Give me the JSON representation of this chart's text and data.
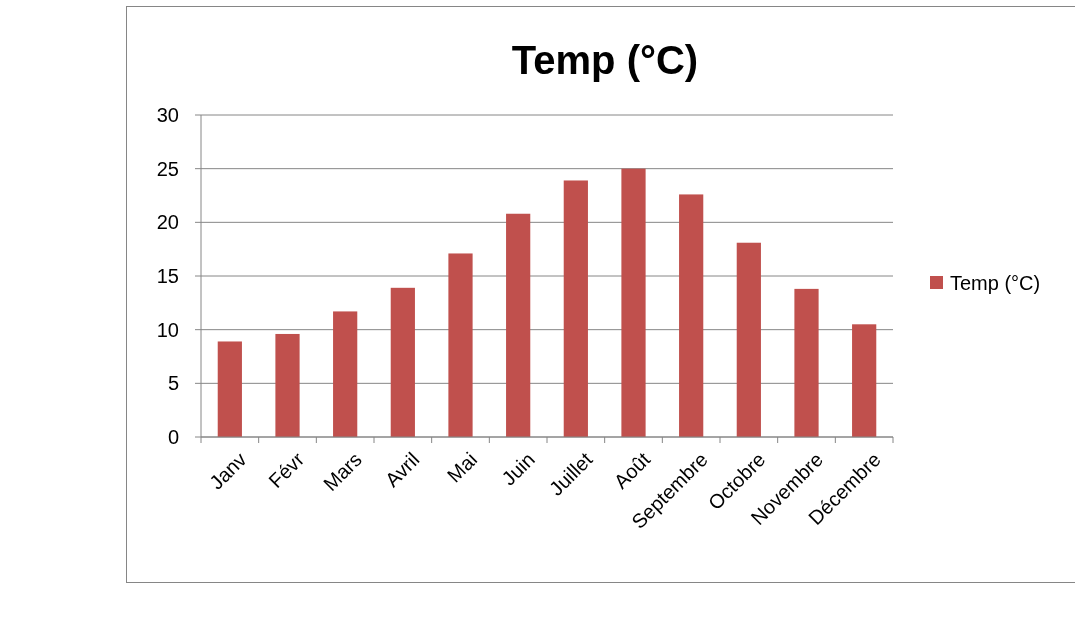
{
  "chart_data": {
    "type": "bar",
    "title": "Temp (°C)",
    "categories": [
      "Janv",
      "Févr",
      "Mars",
      "Avril",
      "Mai",
      "Juin",
      "Juillet",
      "Août",
      "Septembre",
      "Octobre",
      "Novembre",
      "Décembre"
    ],
    "series": [
      {
        "name": "Temp (°C)",
        "color": "#c0504d",
        "values": [
          8.9,
          9.6,
          11.7,
          13.9,
          17.1,
          20.8,
          23.9,
          25,
          22.6,
          18.1,
          13.8,
          10.5
        ]
      }
    ],
    "ylim": [
      0,
      30
    ],
    "yticks": [
      0,
      5,
      10,
      15,
      20,
      25,
      30
    ],
    "grid": "y",
    "legend": "right"
  }
}
